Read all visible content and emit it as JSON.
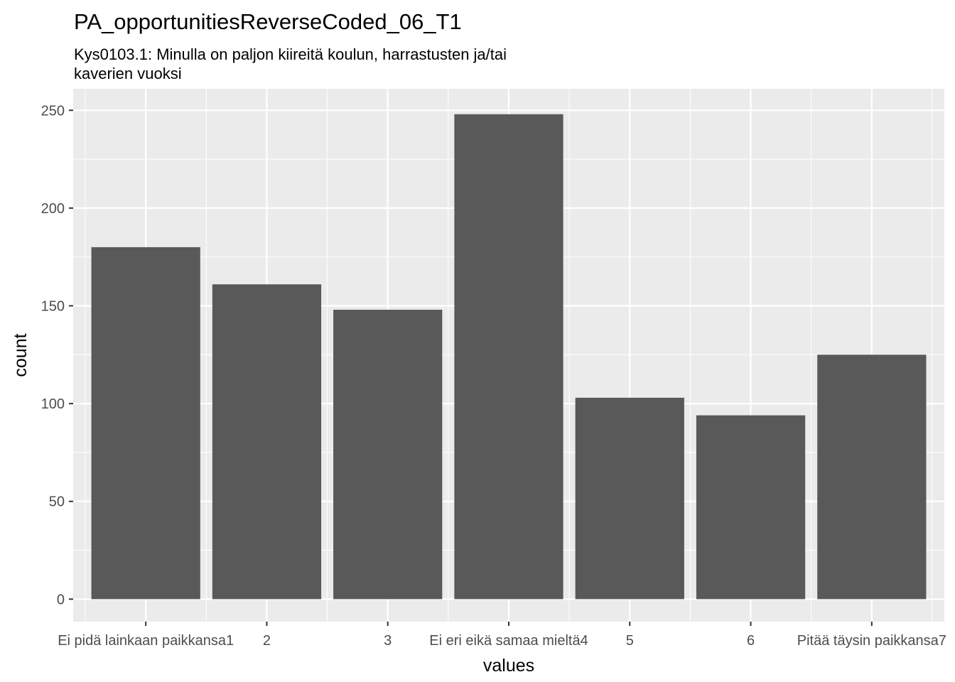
{
  "chart_data": {
    "type": "bar",
    "title": "PA_opportunitiesReverseCoded_06_T1",
    "subtitle_lines": [
      "Kys0103.1: Minulla on paljon kiireitä koulun, harrastusten ja/tai",
      "kaverien vuoksi"
    ],
    "xlabel": "values",
    "ylabel": "count",
    "categories": [
      "Ei pidä lainkaan paikkansa1",
      "2",
      "3",
      "Ei eri eikä samaa mieltä4",
      "5",
      "6",
      "Pitää täysin paikkansa7"
    ],
    "values": [
      180,
      161,
      148,
      248,
      103,
      94,
      125
    ],
    "yticks": [
      0,
      50,
      100,
      150,
      200,
      250
    ],
    "ytick_labels": [
      "0",
      "50",
      "100",
      "150",
      "200",
      "250"
    ],
    "ylim": [
      -11.5,
      261
    ],
    "grid": true,
    "colors": {
      "panel": "#ebebeb",
      "grid": "#ffffff",
      "bar": "#595959",
      "tick_text": "#4d4d4d",
      "tick_line": "#333333"
    }
  }
}
